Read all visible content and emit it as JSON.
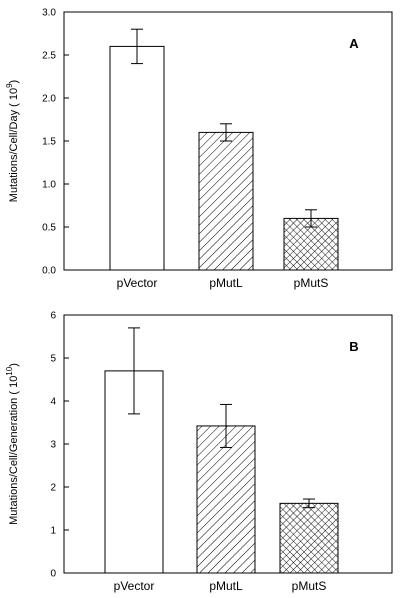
{
  "chart_data": [
    {
      "type": "bar",
      "panel_label": "A",
      "categories": [
        "pVector",
        "pMutL",
        "pMutS"
      ],
      "values": [
        2.6,
        1.6,
        0.6
      ],
      "errors": [
        0.2,
        0.1,
        0.1
      ],
      "patterns": [
        "none",
        "diagonal-hatch",
        "cross-hatch"
      ],
      "ylabel_prefix": "Mutations/Cell/Day  ( 10",
      "ylabel_exponent": "9",
      "ylabel_suffix": ")",
      "ylim": [
        0,
        3.0
      ],
      "yticks": [
        "0.0",
        "0.5",
        "1.0",
        "1.5",
        "2.0",
        "2.5",
        "3.0"
      ],
      "grid": false
    },
    {
      "type": "bar",
      "panel_label": "B",
      "categories": [
        "pVector",
        "pMutL",
        "pMutS"
      ],
      "values": [
        4.7,
        3.42,
        1.62
      ],
      "errors": [
        1.0,
        0.5,
        0.1
      ],
      "patterns": [
        "none",
        "diagonal-hatch",
        "cross-hatch"
      ],
      "ylabel_prefix": "Mutations/Cell/Generation  ( 10",
      "ylabel_exponent": "10",
      "ylabel_suffix": ")",
      "ylim": [
        0,
        6
      ],
      "yticks": [
        "0",
        "1",
        "2",
        "3",
        "4",
        "5",
        "6"
      ],
      "grid": false
    }
  ]
}
